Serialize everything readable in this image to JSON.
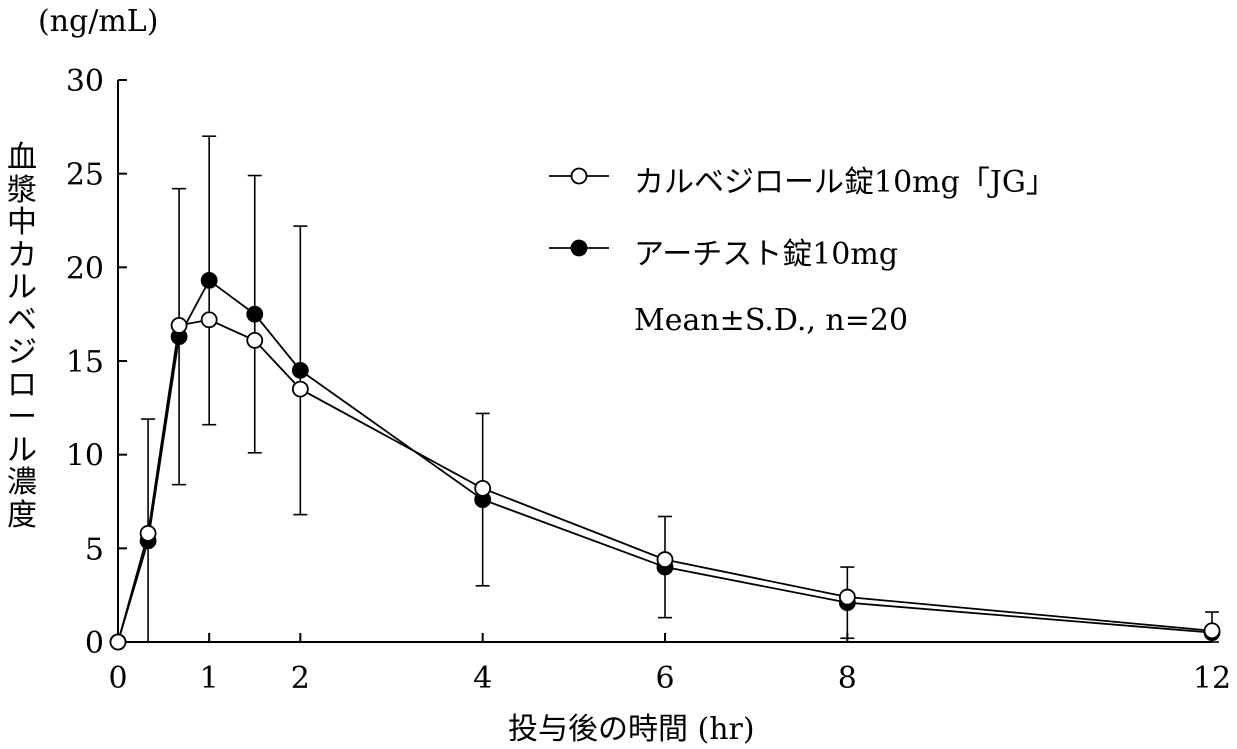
{
  "chart_data": {
    "type": "line",
    "unit_label": "(ng/mL)",
    "ylabel": "血漿中カルベジロール濃度",
    "xlabel": "投与後の時間 (hr)",
    "x_ticks": [
      0,
      1,
      2,
      4,
      6,
      8,
      12
    ],
    "y_ticks": [
      0,
      5,
      10,
      15,
      20,
      25,
      30
    ],
    "xlim": [
      0,
      12
    ],
    "ylim": [
      0,
      30
    ],
    "grid": false,
    "legend_position": "top-right",
    "note": "Mean±S.D., n=20",
    "x": [
      0,
      0.33,
      0.67,
      1,
      1.5,
      2,
      4,
      6,
      8,
      12
    ],
    "series": [
      {
        "name": "カルベジロール錠10mg「JG」",
        "marker": "open-circle",
        "values": [
          0,
          5.8,
          16.9,
          17.2,
          16.1,
          13.5,
          8.2,
          4.4,
          2.4,
          0.6
        ],
        "sd": [
          0,
          0,
          0,
          0,
          0,
          0,
          0,
          0,
          0,
          0
        ]
      },
      {
        "name": "アーチスト錠10mg",
        "marker": "filled-circle",
        "values": [
          0,
          5.4,
          16.3,
          19.3,
          17.5,
          14.5,
          7.6,
          4.0,
          2.1,
          0.5
        ],
        "sd": [
          0,
          6.5,
          7.9,
          7.7,
          7.4,
          7.7,
          4.6,
          2.7,
          1.9,
          1.1
        ]
      }
    ]
  }
}
